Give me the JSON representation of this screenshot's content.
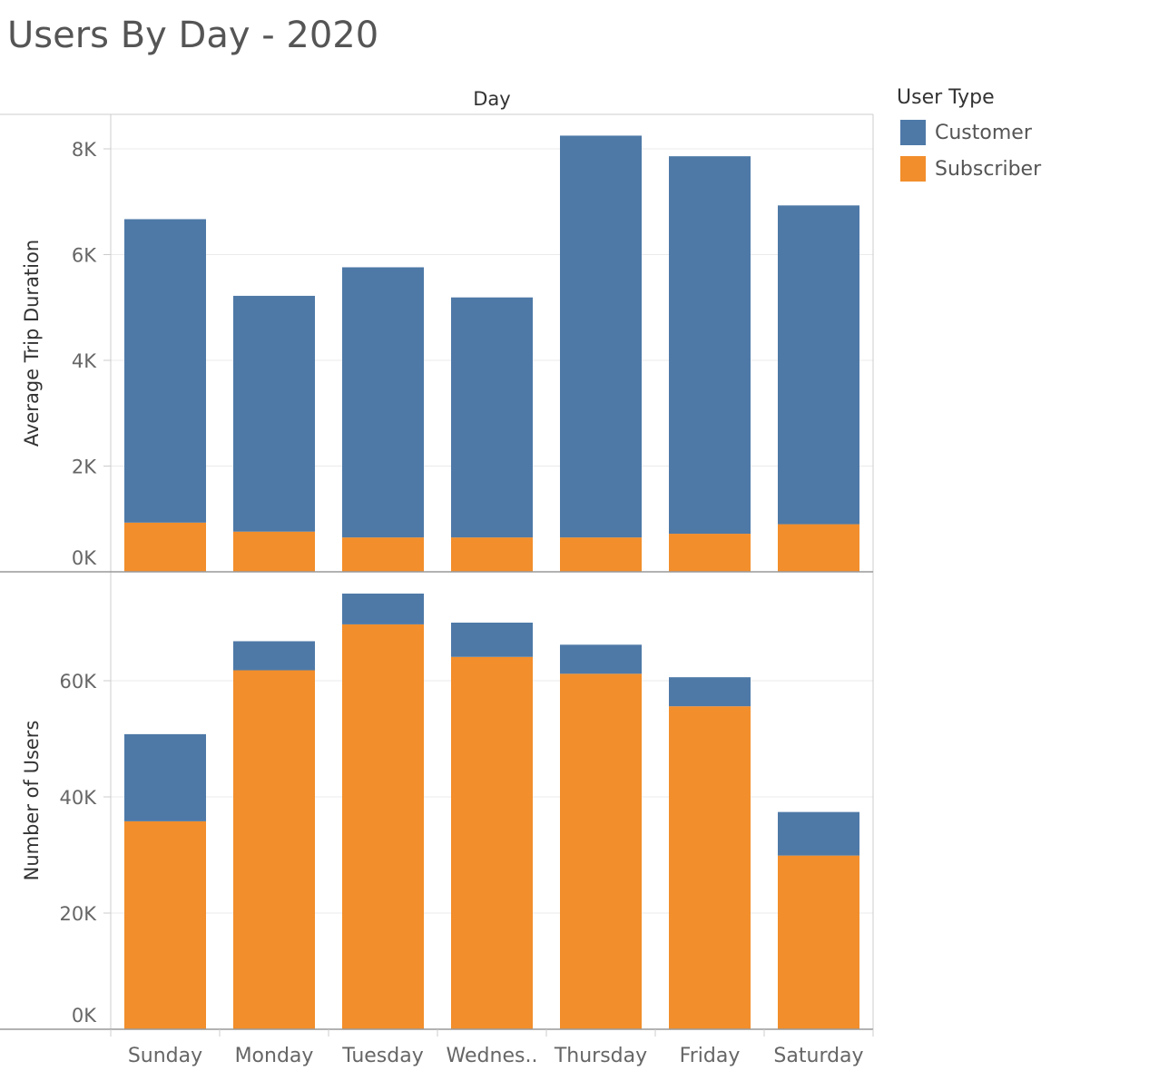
{
  "colors": {
    "Customer": "#4e79a7",
    "Subscriber": "#f28e2b"
  },
  "legend": {
    "title": "User Type",
    "items": [
      {
        "label": "Customer",
        "color": "#4e79a7"
      },
      {
        "label": "Subscriber",
        "color": "#f28e2b"
      }
    ]
  },
  "chart_data": {
    "type": "bar",
    "stacked": true,
    "title": "Users By Day - 2020",
    "column_header": "Day",
    "categories": [
      "Sunday",
      "Monday",
      "Tuesday",
      "Wednes..",
      "Thursday",
      "Friday",
      "Saturday"
    ],
    "legend_position": "top-right",
    "panels": [
      {
        "ylabel": "Average Trip Duration",
        "ylim": [
          0,
          8600
        ],
        "yticks": [
          0,
          2000,
          4000,
          6000,
          8000
        ],
        "ytick_labels": [
          "0K",
          "2K",
          "4K",
          "6K",
          "8K"
        ],
        "series": [
          {
            "name": "Subscriber",
            "values": [
              930,
              760,
              650,
              650,
              650,
              720,
              900
            ]
          },
          {
            "name": "Customer",
            "values": [
              5740,
              4460,
              5110,
              4540,
              7600,
              7140,
              6030
            ]
          }
        ]
      },
      {
        "ylabel": "Number of Users",
        "ylim": [
          0,
          75000
        ],
        "yticks": [
          0,
          20000,
          40000,
          60000
        ],
        "ytick_labels": [
          "0K",
          "20K",
          "40K",
          "60K"
        ],
        "series": [
          {
            "name": "Subscriber",
            "values": [
              35800,
              61800,
              69700,
              64100,
              61200,
              55600,
              29900
            ]
          },
          {
            "name": "Customer",
            "values": [
              15000,
              5000,
              5300,
              5900,
              5000,
              5000,
              7500
            ]
          }
        ]
      }
    ]
  }
}
